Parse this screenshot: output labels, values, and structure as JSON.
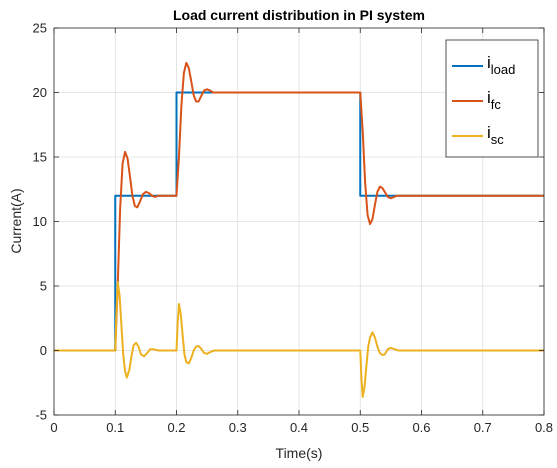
{
  "chart_data": {
    "type": "line",
    "title": "Load current distribution in PI system",
    "xlabel": "Time(s)",
    "ylabel": "Current(A)",
    "xlim": [
      0,
      0.8
    ],
    "ylim": [
      -5,
      25
    ],
    "xticks": [
      0,
      0.1,
      0.2,
      0.3,
      0.4,
      0.5,
      0.6,
      0.7,
      0.8
    ],
    "yticks": [
      -5,
      0,
      5,
      10,
      15,
      20,
      25
    ],
    "xtick_labels": [
      "0",
      "0.1",
      "0.2",
      "0.3",
      "0.4",
      "0.5",
      "0.6",
      "0.7",
      "0.8"
    ],
    "ytick_labels": [
      "-5",
      "0",
      "5",
      "10",
      "15",
      "20",
      "25"
    ],
    "grid": true,
    "legend_position": "top-right",
    "series": [
      {
        "name_main": "i",
        "name_sub": "load",
        "color": "#0072BD",
        "points": [
          [
            0,
            0
          ],
          [
            0.1,
            0
          ],
          [
            0.1,
            12
          ],
          [
            0.2,
            12
          ],
          [
            0.2,
            20
          ],
          [
            0.5,
            20
          ],
          [
            0.5,
            12
          ],
          [
            0.8,
            12
          ]
        ]
      },
      {
        "name_main": "i",
        "name_sub": "fc",
        "color": "#D95319",
        "points": [
          [
            0,
            0
          ],
          [
            0.1,
            0
          ],
          [
            0.104,
            5
          ],
          [
            0.108,
            11
          ],
          [
            0.112,
            14.5
          ],
          [
            0.116,
            15.4
          ],
          [
            0.12,
            14.9
          ],
          [
            0.124,
            13.5
          ],
          [
            0.128,
            12.0
          ],
          [
            0.132,
            11.2
          ],
          [
            0.136,
            11.1
          ],
          [
            0.14,
            11.5
          ],
          [
            0.145,
            12.1
          ],
          [
            0.15,
            12.3
          ],
          [
            0.155,
            12.2
          ],
          [
            0.16,
            12.0
          ],
          [
            0.165,
            11.9
          ],
          [
            0.17,
            12.0
          ],
          [
            0.2,
            12.0
          ],
          [
            0.204,
            15
          ],
          [
            0.208,
            19
          ],
          [
            0.212,
            21.5
          ],
          [
            0.216,
            22.3
          ],
          [
            0.22,
            21.9
          ],
          [
            0.224,
            20.9
          ],
          [
            0.228,
            19.8
          ],
          [
            0.232,
            19.3
          ],
          [
            0.236,
            19.3
          ],
          [
            0.24,
            19.7
          ],
          [
            0.245,
            20.15
          ],
          [
            0.25,
            20.25
          ],
          [
            0.255,
            20.15
          ],
          [
            0.26,
            20.0
          ],
          [
            0.5,
            20.0
          ],
          [
            0.504,
            17
          ],
          [
            0.508,
            13
          ],
          [
            0.512,
            10.5
          ],
          [
            0.516,
            9.8
          ],
          [
            0.52,
            10.2
          ],
          [
            0.524,
            11.3
          ],
          [
            0.528,
            12.3
          ],
          [
            0.532,
            12.7
          ],
          [
            0.536,
            12.6
          ],
          [
            0.54,
            12.3
          ],
          [
            0.545,
            11.9
          ],
          [
            0.55,
            11.8
          ],
          [
            0.555,
            11.9
          ],
          [
            0.56,
            12.0
          ],
          [
            0.8,
            12.0
          ]
        ]
      },
      {
        "name_main": "i",
        "name_sub": "sc",
        "color": "#EDB120",
        "points": [
          [
            0,
            0
          ],
          [
            0.1,
            0
          ],
          [
            0.102,
            3.0
          ],
          [
            0.104,
            5.3
          ],
          [
            0.107,
            4.3
          ],
          [
            0.11,
            2.0
          ],
          [
            0.113,
            -0.3
          ],
          [
            0.116,
            -1.6
          ],
          [
            0.119,
            -2.1
          ],
          [
            0.123,
            -1.5
          ],
          [
            0.127,
            -0.3
          ],
          [
            0.13,
            0.4
          ],
          [
            0.134,
            0.6
          ],
          [
            0.138,
            0.3
          ],
          [
            0.142,
            -0.3
          ],
          [
            0.147,
            -0.45
          ],
          [
            0.152,
            -0.2
          ],
          [
            0.157,
            0.1
          ],
          [
            0.162,
            0.1
          ],
          [
            0.17,
            0.0
          ],
          [
            0.2,
            0.0
          ],
          [
            0.202,
            2.2
          ],
          [
            0.204,
            3.6
          ],
          [
            0.207,
            2.8
          ],
          [
            0.21,
            1.2
          ],
          [
            0.213,
            -0.3
          ],
          [
            0.216,
            -0.9
          ],
          [
            0.22,
            -1.0
          ],
          [
            0.224,
            -0.6
          ],
          [
            0.228,
            0.0
          ],
          [
            0.232,
            0.3
          ],
          [
            0.236,
            0.35
          ],
          [
            0.24,
            0.15
          ],
          [
            0.245,
            -0.2
          ],
          [
            0.25,
            -0.25
          ],
          [
            0.256,
            -0.1
          ],
          [
            0.262,
            0.0
          ],
          [
            0.5,
            0.0
          ],
          [
            0.502,
            -2.2
          ],
          [
            0.504,
            -3.6
          ],
          [
            0.507,
            -2.8
          ],
          [
            0.51,
            -1.2
          ],
          [
            0.513,
            0.3
          ],
          [
            0.516,
            1.0
          ],
          [
            0.52,
            1.4
          ],
          [
            0.524,
            1.0
          ],
          [
            0.528,
            0.3
          ],
          [
            0.532,
            -0.2
          ],
          [
            0.536,
            -0.35
          ],
          [
            0.54,
            -0.3
          ],
          [
            0.545,
            0.1
          ],
          [
            0.55,
            0.2
          ],
          [
            0.556,
            0.1
          ],
          [
            0.562,
            0.0
          ],
          [
            0.8,
            0.0
          ]
        ]
      }
    ]
  }
}
